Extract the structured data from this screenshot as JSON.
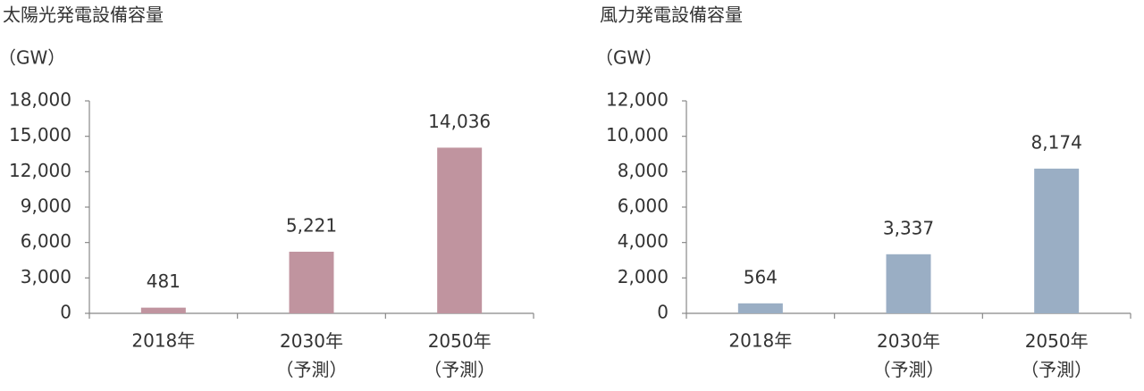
{
  "chart_data": [
    {
      "type": "bar",
      "title": "太陽光発電設備容量",
      "y_label": "（GW）",
      "categories": [
        "2018年",
        "2030年\n（予測）",
        "2050年\n（予測）"
      ],
      "values": [
        481,
        5221,
        14036
      ],
      "value_labels": [
        "481",
        "5,221",
        "14,036"
      ],
      "color": "#c0949f",
      "ylim": [
        0,
        18000
      ],
      "yticks": [
        0,
        {
          "value": 3000,
          "label": "3,000"
        },
        {
          "value": 6000,
          "label": "6,000"
        },
        {
          "value": 9000,
          "label": "9,000"
        },
        {
          "value": 12000,
          "label": "12,000"
        },
        {
          "value": 15000,
          "label": "15,000"
        },
        {
          "value": 18000,
          "label": "18,000"
        }
      ],
      "grid": false
    },
    {
      "type": "bar",
      "title": "風力発電設備容量",
      "y_label": "（GW）",
      "categories": [
        "2018年",
        "2030年\n（予測）",
        "2050年\n（予測）"
      ],
      "values": [
        564,
        3337,
        8174
      ],
      "value_labels": [
        "564",
        "3,337",
        "8,174"
      ],
      "color": "#9aaec4",
      "ylim": [
        0,
        12000
      ],
      "yticks": [
        0,
        {
          "value": 2000,
          "label": "2,000"
        },
        {
          "value": 4000,
          "label": "4,000"
        },
        {
          "value": 6000,
          "label": "6,000"
        },
        {
          "value": 8000,
          "label": "8,000"
        },
        {
          "value": 10000,
          "label": "10,000"
        },
        {
          "value": 12000,
          "label": "12,000"
        }
      ],
      "grid": false
    }
  ]
}
